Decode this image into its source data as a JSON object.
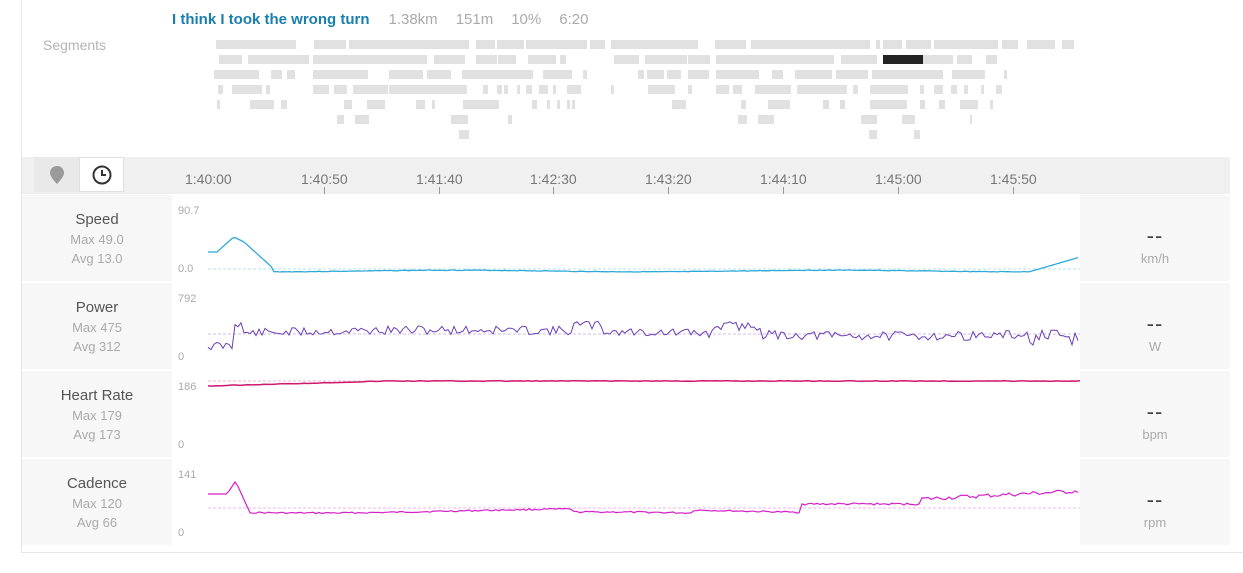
{
  "segment": {
    "name": "I think I took the wrong turn",
    "distance": "1.38km",
    "elevation": "151m",
    "grade": "10%",
    "time": "6:20"
  },
  "segments_label": "Segments",
  "timeline": {
    "ticks": [
      "1:40:00",
      "1:40:50",
      "1:41:40",
      "1:42:30",
      "1:43:20",
      "1:44:10",
      "1:45:00",
      "1:45:50"
    ]
  },
  "metrics": [
    {
      "name": "Speed",
      "max": "Max 49.0",
      "avg": "Avg 13.0",
      "ymax": "90.7",
      "ymin": "0.0",
      "value": "--",
      "unit": "km/h",
      "color": "#2fa9d8"
    },
    {
      "name": "Power",
      "max": "Max 475",
      "avg": "Avg 312",
      "ymax": "792",
      "ymin": "0",
      "value": "--",
      "unit": "W",
      "color": "#6b3fb6"
    },
    {
      "name": "Heart Rate",
      "max": "Max 179",
      "avg": "Avg 173",
      "ymax": "186",
      "ymin": "0",
      "value": "--",
      "unit": "bpm",
      "color": "#d0176e"
    },
    {
      "name": "Cadence",
      "max": "Max 120",
      "avg": "Avg 66",
      "ymax": "141",
      "ymin": "0",
      "value": "--",
      "unit": "rpm",
      "color": "#d620c9"
    }
  ],
  "icons": {
    "pin": "map-pin-icon",
    "clock": "clock-icon"
  }
}
